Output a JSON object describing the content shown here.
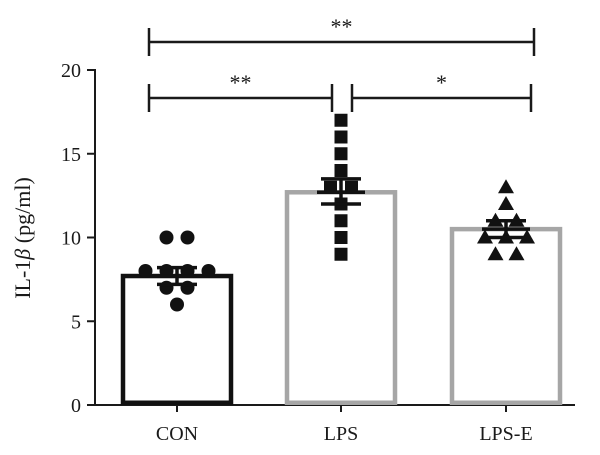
{
  "chart_data": {
    "type": "bar",
    "ylabel_prefix": "IL-1",
    "ylabel_greek": "β",
    "ylabel_suffix": " (pg/ml)",
    "categories": [
      "CON",
      "LPS",
      "LPS-E"
    ],
    "means": [
      7.7,
      12.7,
      10.5
    ],
    "error_low": [
      7.2,
      12.0,
      10.0
    ],
    "error_high": [
      8.2,
      13.5,
      11.0
    ],
    "ylim": [
      0,
      20
    ],
    "yticks": [
      0,
      5,
      10,
      15,
      20
    ],
    "bar_colors": [
      "#111111",
      "#a6a6a6",
      "#a6a6a6"
    ],
    "marker_color": "#111111",
    "markers": [
      "circle",
      "square",
      "triangle"
    ],
    "points": [
      [
        10,
        10,
        8,
        8,
        8,
        8,
        7,
        7,
        6
      ],
      [
        17,
        16,
        15,
        14,
        13,
        13,
        12,
        11,
        10,
        9
      ],
      [
        13,
        12,
        11,
        11,
        10,
        10,
        10,
        9,
        9
      ]
    ],
    "significance": [
      {
        "from": 0,
        "to": 2,
        "label": "**",
        "level": 2
      },
      {
        "from": 0,
        "to": 1,
        "label": "**",
        "level": 1
      },
      {
        "from": 1,
        "to": 2,
        "label": "*",
        "level": 1
      }
    ]
  }
}
